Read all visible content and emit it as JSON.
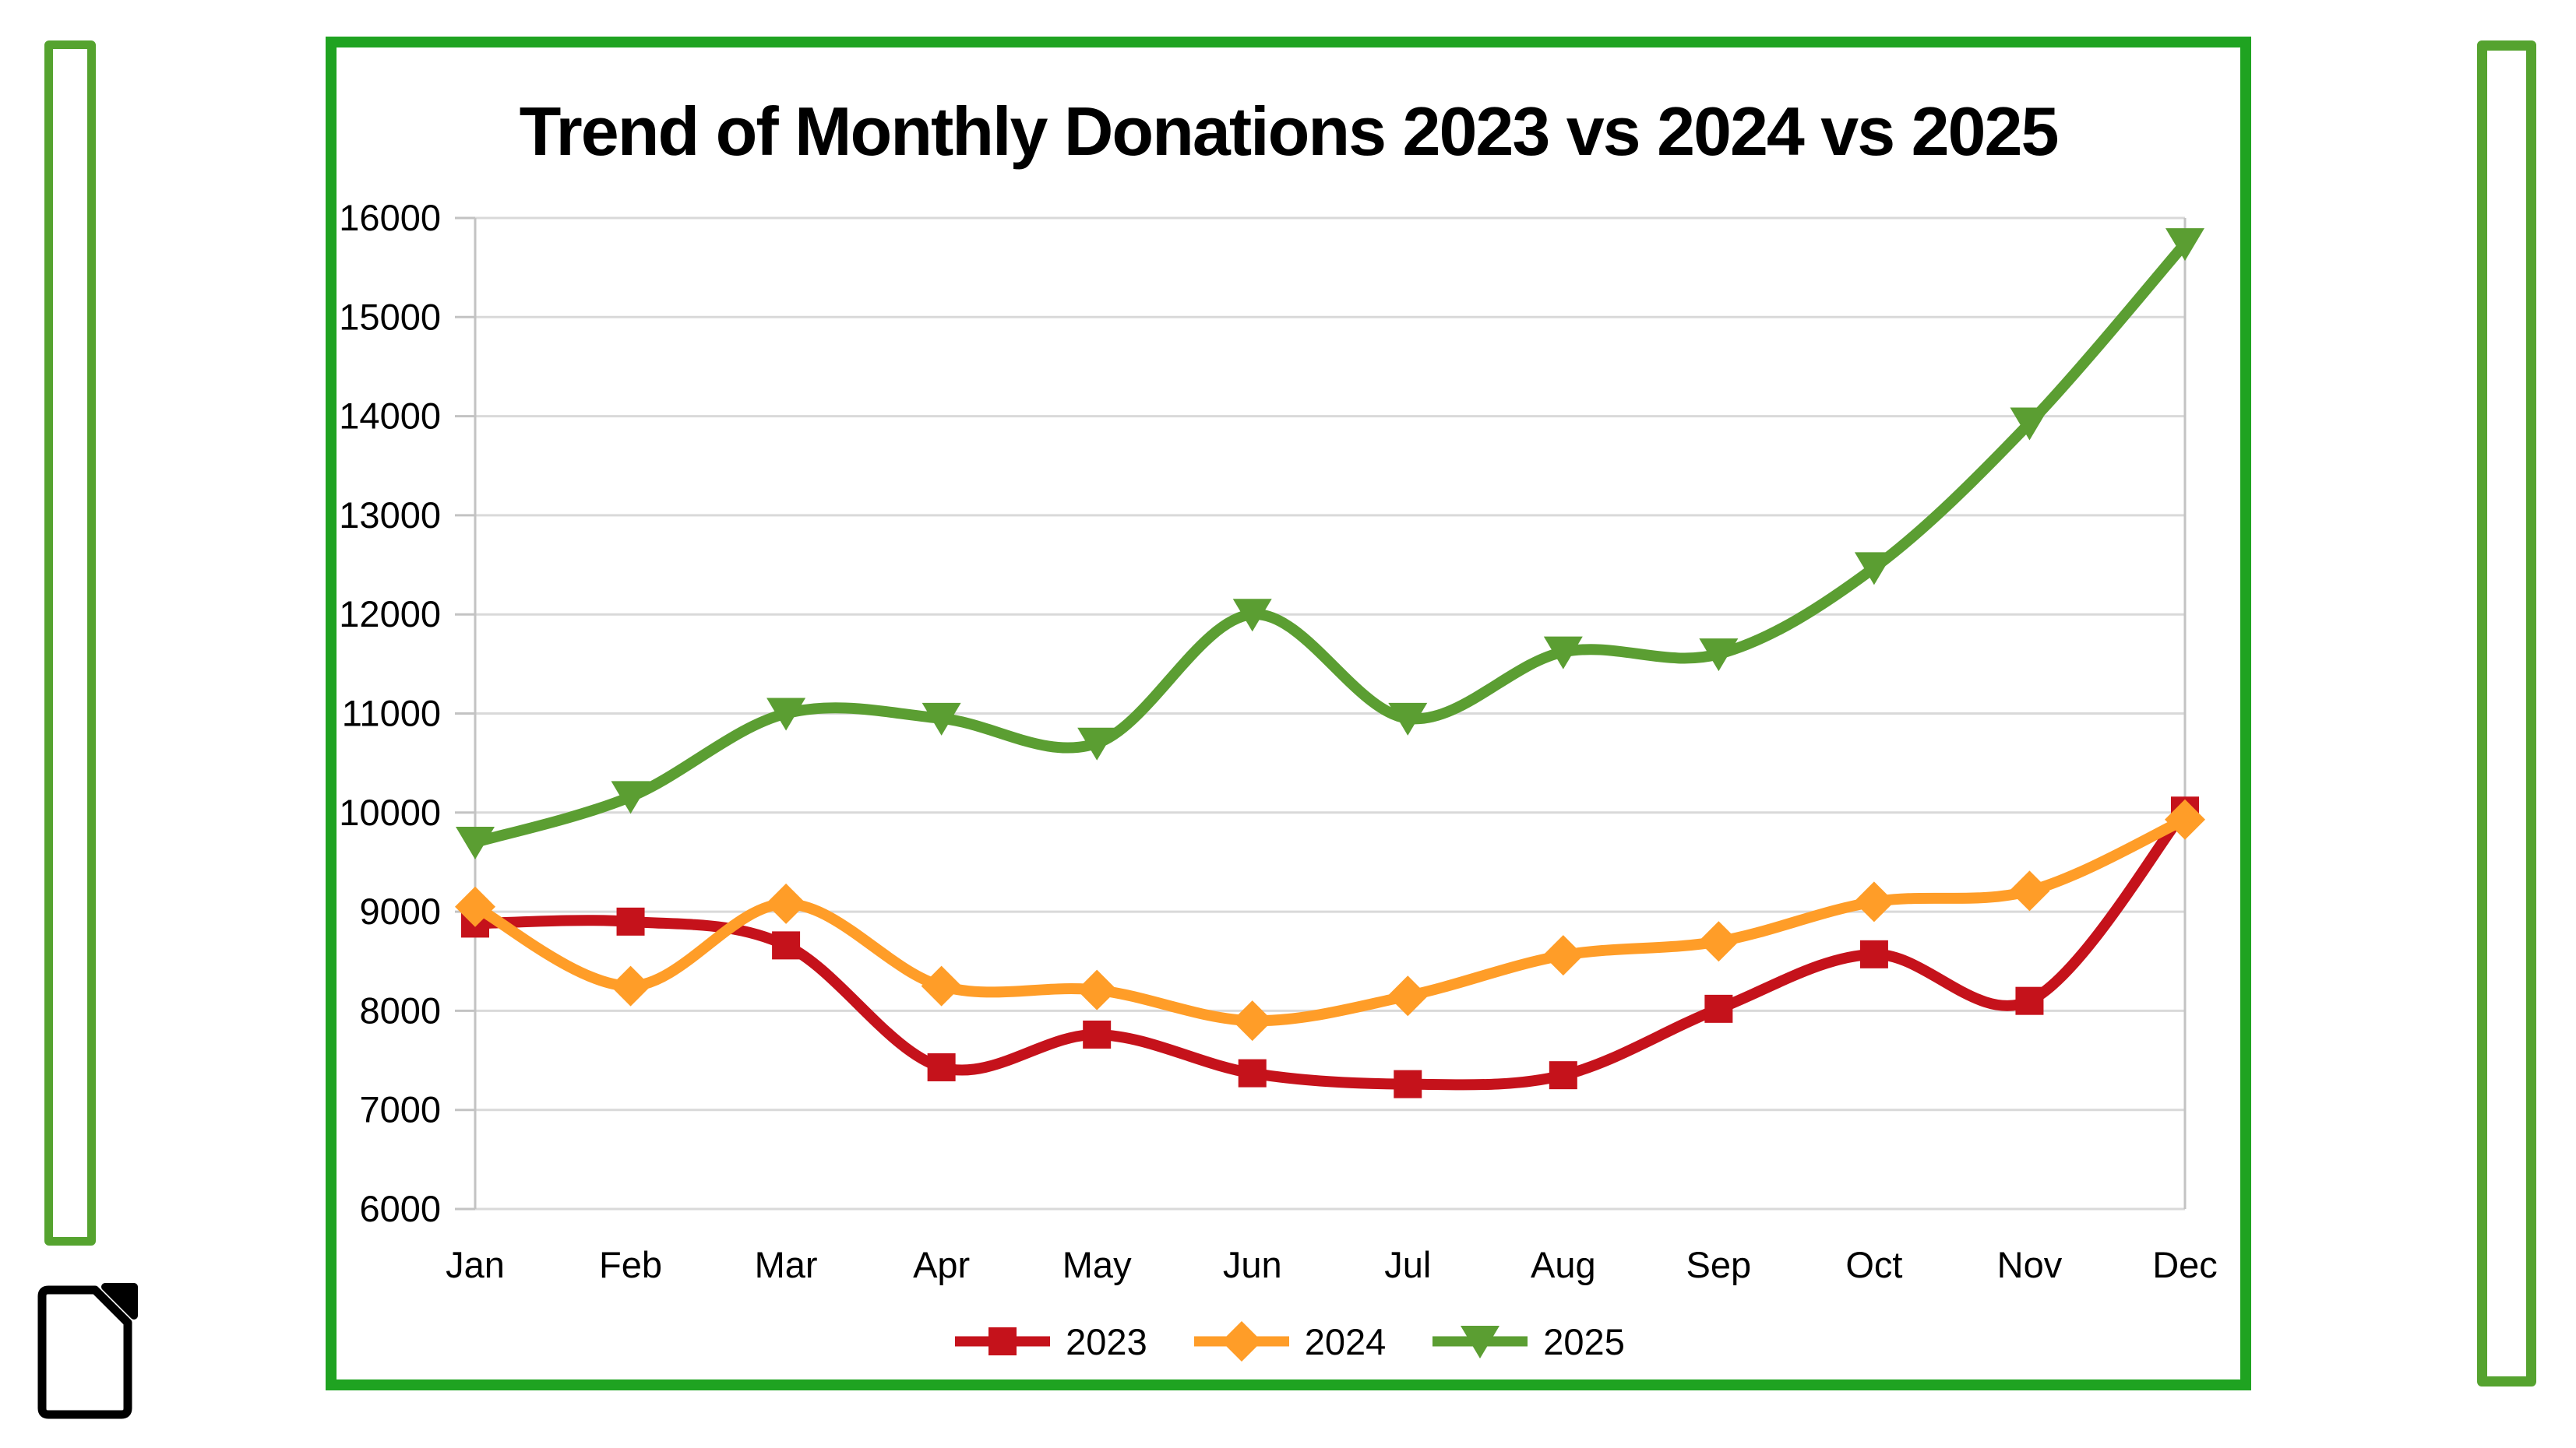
{
  "slide": {
    "background": "#ffffff",
    "decor_colors": {
      "side_bar_green": "#55a32f",
      "frame_green": "#1fa321",
      "logo_black": "#000000"
    }
  },
  "chart_data": {
    "type": "line",
    "title": "Trend of Monthly Donations 2023 vs 2024 vs 2025",
    "categories": [
      "Jan",
      "Feb",
      "Mar",
      "Apr",
      "May",
      "Jun",
      "Jul",
      "Aug",
      "Sep",
      "Oct",
      "Nov",
      "Dec"
    ],
    "series": [
      {
        "name": "2023",
        "color": "#c5121b",
        "marker": "square",
        "values": [
          8880,
          8900,
          8660,
          7430,
          7760,
          7370,
          7260,
          7350,
          8020,
          8570,
          8100,
          10020
        ]
      },
      {
        "name": "2024",
        "color": "#ff9d28",
        "marker": "diamond",
        "values": [
          9050,
          8250,
          9080,
          8250,
          8210,
          7900,
          8150,
          8560,
          8700,
          9100,
          9210,
          9930
        ]
      },
      {
        "name": "2025",
        "color": "#5b9e32",
        "marker": "triangle-down",
        "values": [
          9700,
          10160,
          11000,
          10950,
          10700,
          12000,
          10950,
          11620,
          11600,
          12470,
          13930,
          15740
        ]
      }
    ],
    "ylim": [
      6000,
      16000
    ],
    "y_tick_step": 1000,
    "xlabel": "",
    "ylabel": "",
    "grid": "horizontal",
    "gridline_color": "#d9d9d9",
    "axis_line_color": "#c3c3c3",
    "text_color": "#000000",
    "legend_position": "bottom",
    "smooth": true
  }
}
